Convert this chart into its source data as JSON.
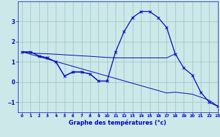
{
  "xlabel": "Graphe des températures (°c)",
  "background_color": "#cce8e8",
  "grid_color": "#9bbfbf",
  "line_color": "#0000bb",
  "hours": [
    0,
    1,
    2,
    3,
    4,
    5,
    6,
    7,
    8,
    9,
    10,
    11,
    12,
    13,
    14,
    15,
    16,
    17,
    18,
    19,
    20,
    21,
    22,
    23
  ],
  "temp_main": [
    1.5,
    1.5,
    1.3,
    1.2,
    1.0,
    0.3,
    0.5,
    0.5,
    0.4,
    0.05,
    0.05,
    1.5,
    2.5,
    3.2,
    3.5,
    3.5,
    3.2,
    2.7,
    1.4,
    0.7,
    0.35,
    -0.5,
    -1.0,
    -1.2
  ],
  "line_horiz_x": [
    0,
    1,
    2,
    3,
    4,
    5,
    6,
    7,
    8,
    9,
    10,
    11,
    12,
    13,
    14,
    15,
    16,
    17,
    18
  ],
  "line_horiz_y": [
    1.5,
    1.45,
    1.42,
    1.4,
    1.38,
    1.35,
    1.33,
    1.3,
    1.28,
    1.25,
    1.22,
    1.2,
    1.2,
    1.2,
    1.2,
    1.2,
    1.2,
    1.2,
    1.4
  ],
  "line_diag_x": [
    0,
    1,
    2,
    3,
    4,
    5,
    6,
    7,
    8,
    9,
    10,
    11,
    12,
    13,
    14,
    15,
    16,
    17,
    18,
    19,
    20,
    21,
    22,
    23
  ],
  "line_diag_y": [
    1.5,
    1.38,
    1.26,
    1.14,
    1.02,
    0.9,
    0.78,
    0.66,
    0.54,
    0.42,
    0.3,
    0.18,
    0.06,
    -0.06,
    -0.18,
    -0.3,
    -0.42,
    -0.54,
    -0.5,
    -0.55,
    -0.6,
    -0.75,
    -0.9,
    -1.2
  ],
  "line_seg_x": [
    0,
    1,
    2,
    3,
    4,
    5,
    6,
    7,
    8,
    9,
    10
  ],
  "line_seg_y": [
    1.5,
    1.5,
    1.3,
    1.2,
    1.0,
    0.3,
    0.5,
    0.5,
    0.4,
    0.05,
    0.05
  ],
  "ylim": [
    -1.5,
    4.0
  ],
  "xlim": [
    -0.5,
    23
  ],
  "yticks": [
    -1,
    0,
    1,
    2,
    3
  ],
  "xticks": [
    0,
    1,
    2,
    3,
    4,
    5,
    6,
    7,
    8,
    9,
    10,
    11,
    12,
    13,
    14,
    15,
    16,
    17,
    18,
    19,
    20,
    21,
    22,
    23
  ]
}
